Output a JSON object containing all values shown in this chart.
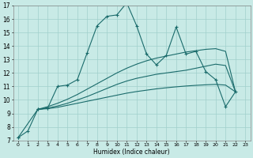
{
  "xlabel": "Humidex (Indice chaleur)",
  "background_color": "#c8eae6",
  "grid_color": "#a0d0cc",
  "line_color": "#1a6b6b",
  "xlim": [
    -0.5,
    23.5
  ],
  "ylim": [
    7,
    17
  ],
  "xticks": [
    0,
    1,
    2,
    3,
    4,
    5,
    6,
    7,
    8,
    9,
    10,
    11,
    12,
    13,
    14,
    15,
    16,
    17,
    18,
    19,
    20,
    21,
    22,
    23
  ],
  "yticks": [
    7,
    8,
    9,
    10,
    11,
    12,
    13,
    14,
    15,
    16,
    17
  ],
  "series0_x": [
    0,
    1,
    2,
    3,
    4,
    5,
    6,
    7,
    8,
    9,
    10,
    11,
    12,
    13,
    14,
    15,
    16,
    17,
    18,
    19,
    20,
    21,
    22
  ],
  "series0_y": [
    7.2,
    7.7,
    9.3,
    9.4,
    11.0,
    11.1,
    11.5,
    13.5,
    15.5,
    16.2,
    16.3,
    17.2,
    15.5,
    13.4,
    12.6,
    13.3,
    15.4,
    13.4,
    13.6,
    12.1,
    11.5,
    9.5,
    10.6
  ],
  "series1_x": [
    0,
    2,
    3
  ],
  "series1_y": [
    7.2,
    9.3,
    9.4
  ],
  "series2_x": [
    2,
    3,
    4,
    5,
    6,
    7,
    8,
    9,
    10,
    11,
    12,
    13,
    14,
    15,
    16,
    17,
    18,
    19,
    20,
    21,
    22
  ],
  "series2_y": [
    9.3,
    9.35,
    9.45,
    9.6,
    9.75,
    9.9,
    10.05,
    10.2,
    10.35,
    10.5,
    10.62,
    10.72,
    10.82,
    10.9,
    10.97,
    11.03,
    11.08,
    11.12,
    11.15,
    11.1,
    10.6
  ],
  "series3_x": [
    2,
    3,
    4,
    5,
    6,
    7,
    8,
    9,
    10,
    11,
    12,
    13,
    14,
    15,
    16,
    17,
    18,
    19,
    20,
    21,
    22
  ],
  "series3_y": [
    9.3,
    9.4,
    9.55,
    9.75,
    10.0,
    10.25,
    10.55,
    10.85,
    11.15,
    11.4,
    11.6,
    11.75,
    11.9,
    12.0,
    12.1,
    12.2,
    12.35,
    12.5,
    12.65,
    12.55,
    10.6
  ],
  "series4_x": [
    2,
    3,
    4,
    5,
    6,
    7,
    8,
    9,
    10,
    11,
    12,
    13,
    14,
    15,
    16,
    17,
    18,
    19,
    20,
    21,
    22
  ],
  "series4_y": [
    9.3,
    9.5,
    9.75,
    10.05,
    10.4,
    10.8,
    11.2,
    11.6,
    12.0,
    12.35,
    12.65,
    12.9,
    13.1,
    13.25,
    13.4,
    13.55,
    13.65,
    13.75,
    13.8,
    13.6,
    10.6
  ]
}
